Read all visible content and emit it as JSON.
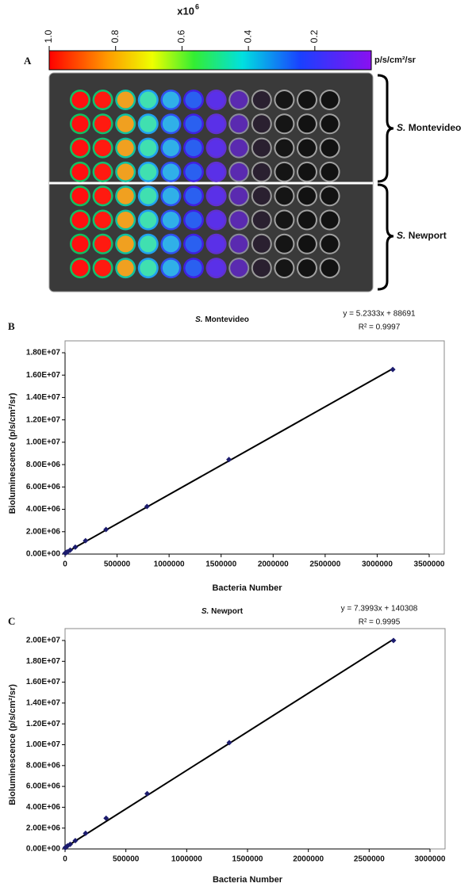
{
  "panel_a": {
    "panel_label": "A",
    "colorbar": {
      "multiplier": "x10",
      "exponent": "6",
      "unit": "p/s/cm²/sr",
      "lim": [
        1,
        0.03
      ],
      "ticks": [
        {
          "value": 1,
          "label": "1.0"
        },
        0.8,
        0.6,
        0.4,
        0.2
      ]
    },
    "groups": [
      [
        "S.",
        "Montevideo"
      ],
      [
        "S.",
        "Newport"
      ]
    ]
  },
  "chart_data": [
    {
      "type": "scatter",
      "panel_label": "B",
      "title": [
        "S.",
        "Montevideo"
      ],
      "equation": "y = 5.2333x + 88691",
      "r_squared": "R² = 0.9997",
      "x_label": "Bacteria Number",
      "y_label": "Bioluminescence (p/s/cm²/sr)",
      "x": [
        1538,
        3076,
        6152,
        12305,
        24609,
        49219,
        98437,
        196875,
        393750,
        787500,
        1575000,
        3150000
      ],
      "values": [
        90000,
        90000,
        100000,
        150000,
        200000,
        350000,
        620000,
        1200000,
        2200000,
        4250000,
        8450000,
        16500000
      ],
      "color": "#1c1c6e",
      "trendline": {
        "x": [
          0,
          3150000
        ],
        "values": [
          88691,
          16573586
        ],
        "color": "#000000"
      },
      "xlim": [
        0,
        3500000
      ],
      "xticks": [
        0,
        500000,
        1000000,
        1500000,
        2000000,
        2500000,
        3000000,
        3500000
      ],
      "ylim": [
        0,
        18000000
      ],
      "yticks": [
        {
          "value": 0,
          "label": "0.00E+00"
        },
        {
          "value": 2000000,
          "label": "2.00E+06"
        },
        {
          "value": 4000000,
          "label": "4.00E+06"
        },
        {
          "value": 6000000,
          "label": "6.00E+06"
        },
        {
          "value": 8000000,
          "label": "8.00E+06"
        },
        {
          "value": 10000000,
          "label": "1.00E+07"
        },
        {
          "value": 12000000,
          "label": "1.20E+07"
        },
        {
          "value": 14000000,
          "label": "1.40E+07"
        },
        {
          "value": 16000000,
          "label": "1.60E+07"
        },
        {
          "value": 18000000,
          "label": "1.80E+07"
        }
      ],
      "grid": false
    },
    {
      "type": "scatter",
      "panel_label": "C",
      "title": [
        "S.",
        "Newport"
      ],
      "equation": "y = 7.3993x + 140308",
      "r_squared": "R² = 0.9995",
      "x_label": "Bacteria Number",
      "y_label": "Bioluminescence (p/s/cm²/sr)",
      "x": [
        1318,
        2637,
        5273,
        10547,
        21094,
        42188,
        84375,
        168750,
        337500,
        675000,
        1350000,
        2700000
      ],
      "values": [
        120000,
        130000,
        150000,
        200000,
        300000,
        450000,
        800000,
        1500000,
        2950000,
        5300000,
        10200000,
        20000000
      ],
      "color": "#1c1c6e",
      "trendline": {
        "x": [
          0,
          2700000
        ],
        "values": [
          140308,
          20118418
        ],
        "color": "#000000"
      },
      "xlim": [
        0,
        3000000
      ],
      "xticks": [
        0,
        500000,
        1000000,
        1500000,
        2000000,
        2500000,
        3000000
      ],
      "ylim": [
        0,
        20000000
      ],
      "yticks": [
        {
          "value": 0,
          "label": "0.00E+00"
        },
        {
          "value": 2000000,
          "label": "2.00E+06"
        },
        {
          "value": 4000000,
          "label": "4.00E+06"
        },
        {
          "value": 6000000,
          "label": "6.00E+06"
        },
        {
          "value": 8000000,
          "label": "8.00E+06"
        },
        {
          "value": 10000000,
          "label": "1.00E+07"
        },
        {
          "value": 12000000,
          "label": "1.20E+07"
        },
        {
          "value": 14000000,
          "label": "1.40E+07"
        },
        {
          "value": 16000000,
          "label": "1.60E+07"
        },
        {
          "value": 18000000,
          "label": "1.80E+07"
        },
        {
          "value": 20000000,
          "label": "2.00E+07"
        }
      ],
      "grid": false
    }
  ]
}
